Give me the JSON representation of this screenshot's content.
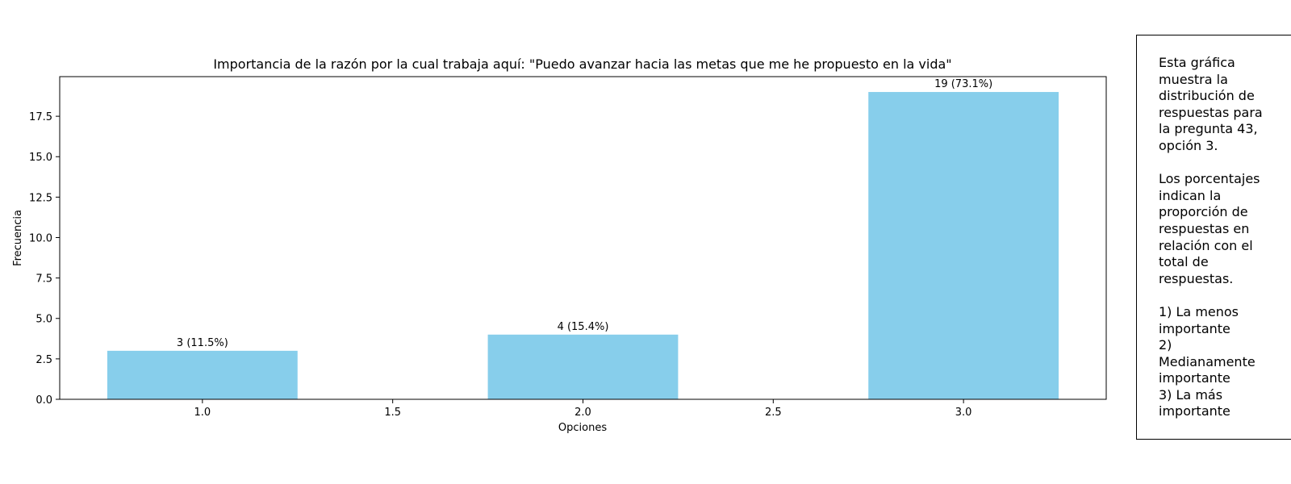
{
  "chart_data": {
    "type": "bar",
    "title": "Importancia de la razón por la cual trabaja aquí: \"Puedo avanzar hacia las metas que me he propuesto en la vida\"",
    "xlabel": "Opciones",
    "ylabel": "Frecuencia",
    "x": [
      1.0,
      2.0,
      3.0
    ],
    "values": [
      3,
      4,
      19
    ],
    "data_labels": [
      "3 (11.5%)",
      "4 (15.4%)",
      "19 (73.1%)"
    ],
    "xlim": [
      0.625,
      3.375
    ],
    "ylim": [
      0,
      19.95
    ],
    "xticks": [
      1.0,
      1.5,
      2.0,
      2.5,
      3.0
    ],
    "xtick_labels": [
      "1.0",
      "1.5",
      "2.0",
      "2.5",
      "3.0"
    ],
    "yticks": [
      0,
      2.5,
      5,
      7.5,
      10,
      12.5,
      15,
      17.5
    ],
    "ytick_labels": [
      "0.0",
      "2.5",
      "5.0",
      "7.5",
      "10.0",
      "12.5",
      "15.0",
      "17.5"
    ],
    "bar_color": "#87ceeb",
    "grid": false,
    "legend": "none"
  },
  "annotation": {
    "paragraphs": [
      "Esta gráfica\nmuestra la\ndistribución de\nrespuestas para\nla pregunta 43,\nopción 3.",
      "Los porcentajes\nindican la\nproporción de\nrespuestas en\nrelación con el\ntotal de\nrespuestas.",
      "1) La menos\nimportante\n2)\nMedianamente\nimportante\n3) La más\nimportante"
    ]
  }
}
